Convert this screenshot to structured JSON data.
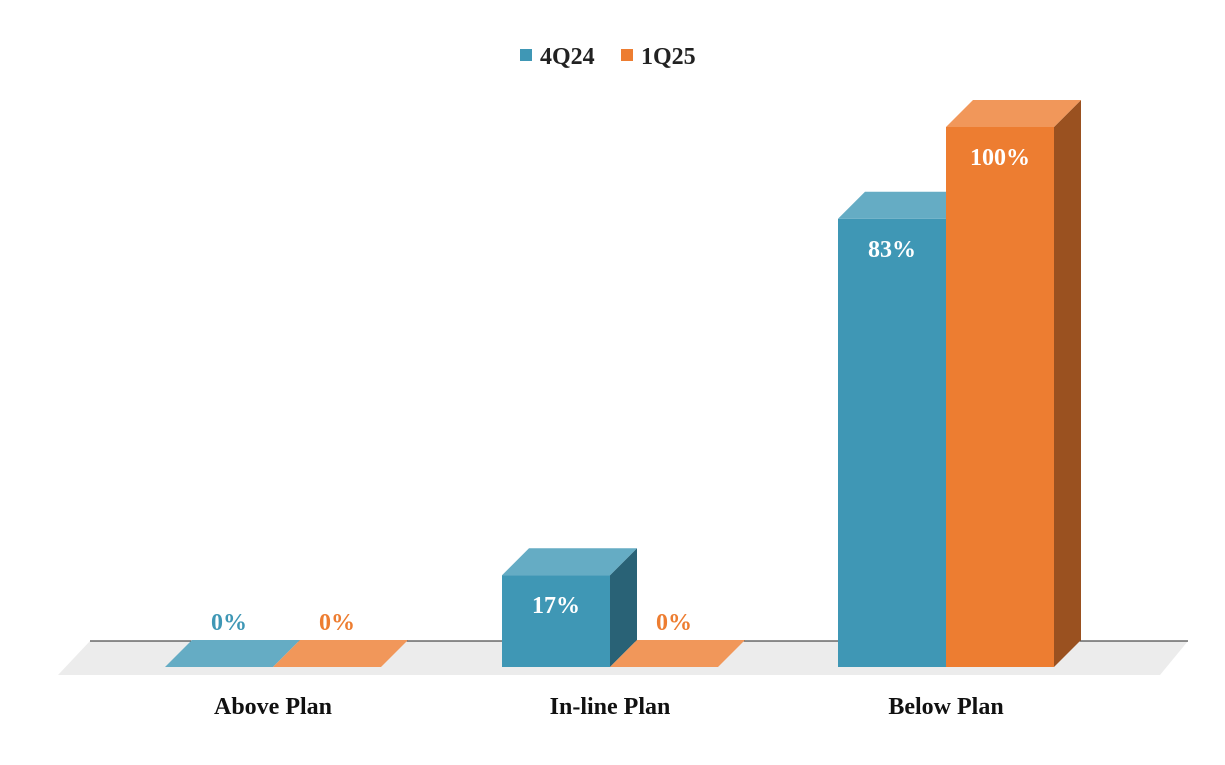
{
  "chart_data": {
    "type": "bar",
    "title": "",
    "xlabel": "",
    "ylabel": "",
    "ylim": [
      0,
      100
    ],
    "grid": false,
    "legend_position": "top",
    "value_suffix": "%",
    "categories": [
      "Above Plan",
      "In-line Plan",
      "Below Plan"
    ],
    "series": [
      {
        "name": "4Q24",
        "values": [
          0,
          17,
          83
        ],
        "color": "#3F97B5"
      },
      {
        "name": "1Q25",
        "values": [
          0,
          0,
          100
        ],
        "color": "#ED7D31"
      }
    ],
    "data_labels": [
      [
        "0%",
        "17%",
        "83%"
      ],
      [
        "0%",
        "0%",
        "100%"
      ]
    ]
  }
}
